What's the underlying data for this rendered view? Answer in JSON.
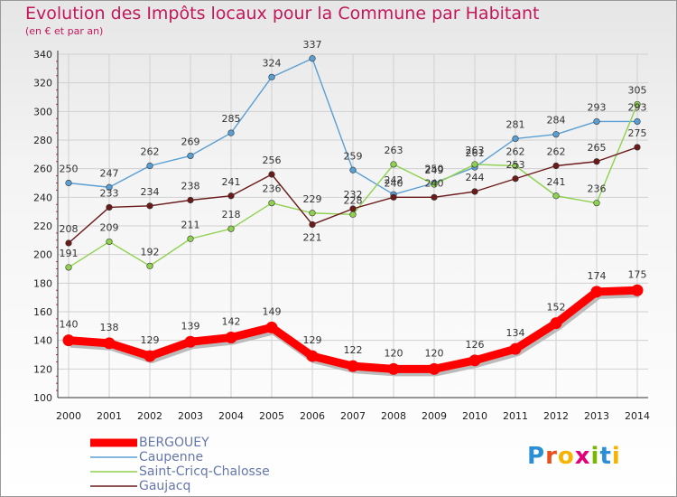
{
  "title": "Evolution des Impôts locaux pour la Commune par Habitant",
  "subtitle": "(en € et par an)",
  "logo": {
    "text": "Proxiti",
    "letters": [
      {
        "ch": "P",
        "color": "#2b8fd6"
      },
      {
        "ch": "r",
        "color": "#e94e1b"
      },
      {
        "ch": "o",
        "color": "#f6b400"
      },
      {
        "ch": "x",
        "color": "#e2007a"
      },
      {
        "ch": "i",
        "color": "#7ab800"
      },
      {
        "ch": "t",
        "color": "#2b8fd6"
      },
      {
        "ch": "i",
        "color": "#f6b400"
      }
    ]
  },
  "chart_data": {
    "type": "line",
    "title": "Evolution des Impôts locaux pour la Commune par Habitant",
    "ylabel": "(en € et par an)",
    "xlabel": "",
    "ylim": [
      100,
      340
    ],
    "yticks": [
      100,
      120,
      140,
      160,
      180,
      200,
      220,
      240,
      260,
      280,
      300,
      320,
      340
    ],
    "categories": [
      "2000",
      "2001",
      "2002",
      "2003",
      "2004",
      "2005",
      "2006",
      "2007",
      "2008",
      "2009",
      "2010",
      "2011",
      "2012",
      "2013",
      "2014"
    ],
    "grid": true,
    "legend_position": "bottom-left",
    "series": [
      {
        "name": "Caupenne",
        "color": "#5a9fd4",
        "values": [
          250,
          247,
          262,
          269,
          285,
          324,
          337,
          259,
          242,
          250,
          261,
          281,
          284,
          293,
          293
        ]
      },
      {
        "name": "Saint-Cricq-Chalosse",
        "color": "#8fd14f",
        "values": [
          191,
          209,
          192,
          211,
          218,
          236,
          229,
          228,
          263,
          249,
          263,
          262,
          241,
          236,
          305
        ]
      },
      {
        "name": "Gaujacq",
        "color": "#6b1a1a",
        "values": [
          208,
          233,
          234,
          238,
          241,
          256,
          221,
          232,
          240,
          240,
          244,
          253,
          262,
          265,
          275
        ]
      },
      {
        "name": "BERGOUEY",
        "color": "#ff0000",
        "values": [
          140,
          138,
          129,
          139,
          142,
          149,
          129,
          122,
          120,
          120,
          126,
          134,
          152,
          174,
          175
        ]
      }
    ]
  }
}
